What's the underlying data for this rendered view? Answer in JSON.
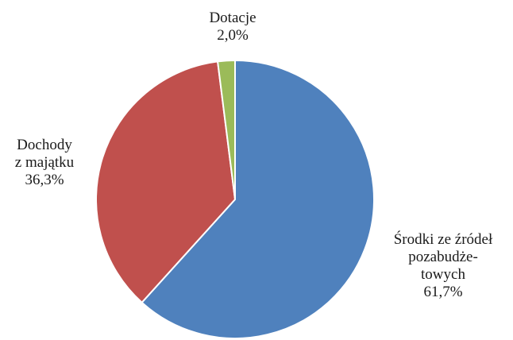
{
  "chart_data": {
    "type": "pie",
    "title": "",
    "slices": [
      {
        "label": [
          "Środki  ze źródeł",
          "pozabudże-",
          "towych"
        ],
        "value_label": "61,7%",
        "value": 61.7,
        "color": "#4f81bd"
      },
      {
        "label": [
          "Dochody",
          "z majątku"
        ],
        "value_label": "36,3%",
        "value": 36.3,
        "color": "#c0504d"
      },
      {
        "label": [
          "Dotacje"
        ],
        "value_label": "2,0%",
        "value": 2.0,
        "color": "#9bbb59"
      }
    ],
    "start": "12 o'clock",
    "direction": "clockwise",
    "legend": "none"
  }
}
